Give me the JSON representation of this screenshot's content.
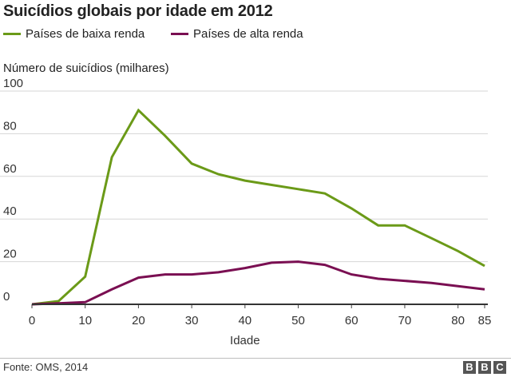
{
  "header": {
    "title": "Suicídios globais por idade em 2012"
  },
  "legend": [
    {
      "label": "Países de baixa renda",
      "color": "#6b9a18"
    },
    {
      "label": "Países de alta renda",
      "color": "#7a0f52"
    }
  ],
  "footer": {
    "source": "Fonte: OMS, 2014",
    "logo_letters": [
      "B",
      "B",
      "C"
    ]
  },
  "chart_data": {
    "type": "line",
    "title": "Suicídios globais por idade em 2012",
    "xlabel": "Idade",
    "ylabel": "Número de suicídios (milhares)",
    "xlim": [
      0,
      85
    ],
    "ylim": [
      0,
      100
    ],
    "xticks": [
      0,
      10,
      20,
      30,
      40,
      50,
      60,
      70,
      80,
      85
    ],
    "yticks": [
      0,
      20,
      40,
      60,
      80,
      100
    ],
    "grid": true,
    "x": [
      0,
      5,
      10,
      15,
      20,
      25,
      30,
      35,
      40,
      45,
      50,
      55,
      60,
      65,
      70,
      75,
      80,
      85
    ],
    "series": [
      {
        "name": "Países de baixa renda",
        "color": "#6b9a18",
        "values": [
          0,
          1.5,
          13,
          69,
          91,
          79,
          66,
          61,
          58,
          56,
          54,
          52,
          45,
          37,
          37,
          31,
          25,
          18
        ]
      },
      {
        "name": "Países de alta renda",
        "color": "#7a0f52",
        "values": [
          0,
          0.5,
          1,
          7,
          12.5,
          14,
          14,
          15,
          17,
          19.5,
          20,
          18.5,
          14,
          12,
          11,
          10,
          8.5,
          7
        ]
      }
    ]
  }
}
